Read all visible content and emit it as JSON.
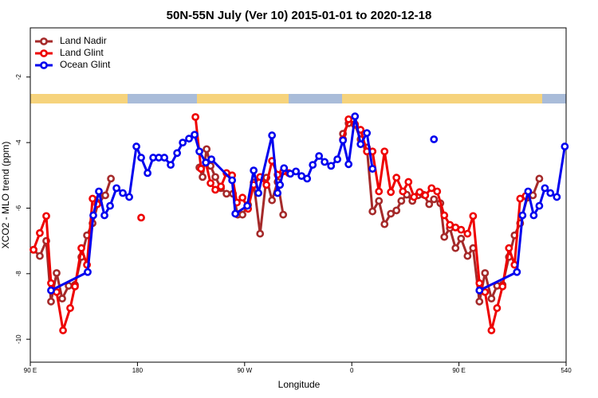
{
  "chart_data": {
    "type": "line",
    "title": "50N-55N July (Ver 10)   2015-01-01 to 2020-12-18",
    "xlabel": "Longitude",
    "ylabel": "XCO2 - MLO trend (ppm)",
    "xlim": [
      90,
      540
    ],
    "ylim": [
      -10.7,
      -0.5
    ],
    "xticks": [
      {
        "value": 90,
        "label": "90 E"
      },
      180,
      {
        "value": 270,
        "label": "90 W"
      },
      {
        "value": 360,
        "label": "0"
      },
      {
        "value": 450,
        "label": "90 E"
      },
      540
    ],
    "yticks": [
      -2,
      -4,
      -6,
      -8,
      -10
    ],
    "legend": "upper left",
    "series": [
      {
        "name": "Land Nadir",
        "color": "#a52a2a",
        "x": [
          92.7,
          98,
          103.4,
          107.4,
          112.1,
          116.8,
          122.2,
          127.5,
          132.9,
          137.6,
          142.3,
          148.3,
          153,
          157.7,
          null,
          232,
          234.7,
          238.1,
          241.4,
          245.4,
          250.1,
          254.8,
          260.2,
          264.2,
          268.2,
          272.9,
          277.6,
          283,
          288.3,
          293,
          297.7,
          302.4,
          null,
          352.6,
          357.3,
          362.7,
          367.4,
          372.7,
          377.4,
          382.8,
          387.5,
          392.8,
          397.5,
          401.6,
          406.2,
          410.9,
          415.6,
          420.3,
          425,
          429,
          434.4,
          437.7,
          442.4,
          447.1,
          451.8,
          457.2,
          461.9,
          467.2,
          471.9,
          477.3,
          482,
          486.6,
          492,
          496.7,
          501.4,
          507.4,
          512.1,
          517.5
        ],
        "values": [
          -7.27,
          -7.46,
          -7.0,
          -8.85,
          -7.98,
          -8.76,
          -8.37,
          -8.34,
          -7.49,
          -6.83,
          -6.46,
          -5.68,
          -5.61,
          -5.1,
          null,
          -4.76,
          -5.05,
          -4.2,
          -4.71,
          -5.05,
          -5.39,
          -5.56,
          -5.56,
          -6.2,
          -6.2,
          -5.9,
          -5.22,
          -6.78,
          -5.07,
          -5.76,
          -5.2,
          -6.2,
          null,
          -3.73,
          -3.41,
          -3.46,
          -3.9,
          -4.15,
          -6.1,
          -5.78,
          -6.49,
          -6.17,
          -6.07,
          -5.78,
          -5.59,
          -5.78,
          -5.61,
          -5.59,
          -5.88,
          -5.73,
          -5.85,
          -6.88,
          -6.61,
          -7.22,
          -6.93,
          -7.46,
          -7.22,
          -8.85,
          -7.98,
          -8.76,
          -8.37,
          -8.34,
          -7.49,
          -6.83,
          -6.46,
          -5.68,
          -5.61,
          -5.1
        ]
      },
      {
        "name": "Land Glint",
        "color": "#ee0000",
        "x": [
          92.7,
          98,
          103.4,
          107.4,
          112.1,
          117.5,
          123.5,
          127.5,
          132.9,
          137.6,
          142.3,
          146.3,
          null,
          183.1,
          null,
          228.7,
          233.4,
          237.4,
          241.4,
          245.4,
          250.1,
          254.8,
          259.5,
          263.5,
          268.2,
          272.9,
          277.6,
          283,
          288.3,
          293,
          297.7,
          302.4,
          307.1,
          null,
          352.6,
          357.3,
          362.7,
          367.4,
          372.7,
          377.4,
          382.8,
          387.5,
          392.8,
          397.5,
          402.9,
          407.6,
          412.3,
          417,
          421.7,
          427,
          431.7,
          437.7,
          442.4,
          447.1,
          451.8,
          457.2,
          461.9,
          467.2,
          471.9,
          477.3,
          482,
          486.6,
          492,
          496.7,
          501.4,
          506.1
        ],
        "values": [
          -7.27,
          -6.76,
          -6.24,
          -8.29,
          -8.56,
          -9.73,
          -9.05,
          -8.39,
          -7.22,
          -7.73,
          -5.71,
          -5.88,
          null,
          -6.29,
          null,
          -3.22,
          -4.8,
          -4.61,
          -5.24,
          -5.44,
          -5.34,
          -4.93,
          -5.0,
          -5.83,
          -5.68,
          -6.02,
          -5.29,
          -5.05,
          -5.29,
          -4.56,
          -4.98,
          -4.88,
          -4.93,
          null,
          -3.9,
          -3.29,
          -3.44,
          -3.61,
          -4.27,
          -4.27,
          -5.49,
          -4.27,
          -5.51,
          -5.07,
          -5.49,
          -5.2,
          -5.66,
          -5.51,
          -5.61,
          -5.39,
          -5.49,
          -6.22,
          -6.51,
          -6.59,
          -6.66,
          -6.78,
          -6.24,
          -8.29,
          -8.56,
          -9.73,
          -9.05,
          -8.39,
          -7.22,
          -7.73,
          -5.71,
          -5.63
        ]
      },
      {
        "name": "Ocean Glint",
        "color": "#0000ee",
        "x": [
          107.4,
          138.2,
          142.9,
          147.6,
          152.3,
          157,
          162.4,
          167.7,
          173.1,
          179.1,
          183.1,
          188.5,
          193.2,
          197.9,
          202.6,
          207.9,
          213.3,
          218,
          223.3,
          228,
          232,
          237.4,
          242.1,
          259.5,
          262.2,
          272.2,
          277.6,
          281.6,
          293,
          297.7,
          299.7,
          303.1,
          308.4,
          313.1,
          317.8,
          322.5,
          327.2,
          332.5,
          337.2,
          342.6,
          347.9,
          352.6,
          357.3,
          362.7,
          367.4,
          372.7,
          377.4,
          null,
          429,
          null,
          467.2,
          498.7,
          503.4,
          508.1,
          512.8,
          517.5,
          522.2,
          526.8,
          532.2,
          538.9
        ],
        "values": [
          -8.51,
          -7.95,
          -6.22,
          -5.49,
          -6.22,
          -5.93,
          -5.39,
          -5.54,
          -5.66,
          -4.12,
          -4.46,
          -4.93,
          -4.46,
          -4.46,
          -4.46,
          -4.68,
          -4.32,
          -4.0,
          -3.88,
          -3.76,
          -4.27,
          -4.61,
          -4.51,
          -5.15,
          -6.17,
          -5.93,
          -4.85,
          -5.54,
          -3.78,
          -5.54,
          -5.29,
          -4.78,
          -4.95,
          -4.88,
          -5.02,
          -5.1,
          -4.68,
          -4.41,
          -4.59,
          -4.71,
          -4.51,
          -3.93,
          -4.66,
          -3.2,
          -4.05,
          -3.71,
          -4.8,
          null,
          -3.9,
          null,
          -8.51,
          -7.95,
          -6.22,
          -5.49,
          -6.22,
          -5.93,
          -5.39,
          -5.54,
          -5.66,
          -4.12
        ]
      }
    ]
  }
}
